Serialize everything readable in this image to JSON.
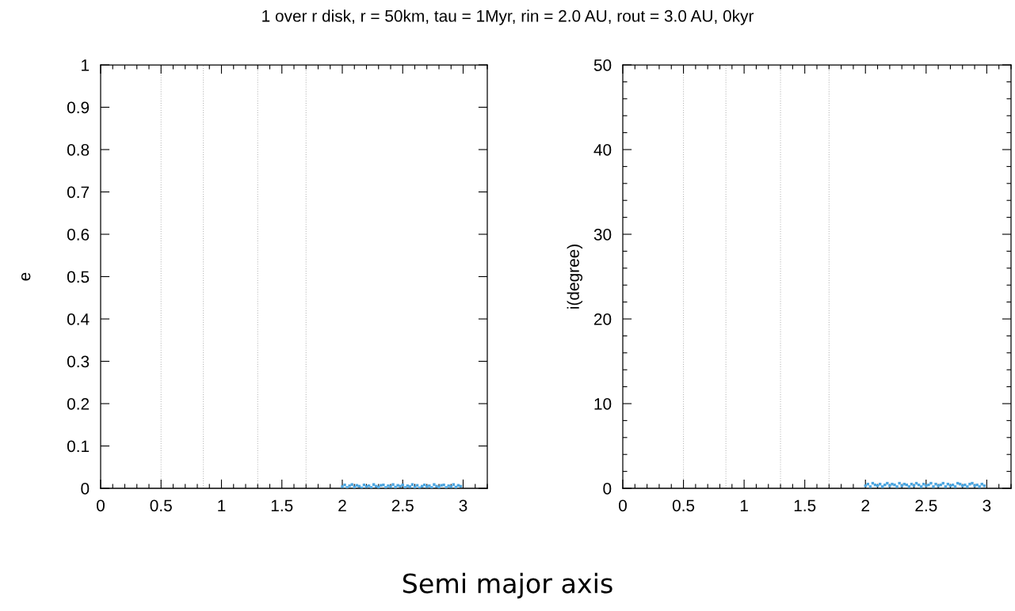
{
  "chart_data": [
    {
      "type": "scatter",
      "title": "1 over r disk, r = 50km, tau = 1Myr, rin = 2.0 AU, rout = 3.0 AU, 0kyr",
      "xlabel": "Semi major axis",
      "ylabel": "e",
      "xlim": [
        0,
        3.2
      ],
      "xticks": [
        0,
        0.5,
        1,
        1.5,
        2,
        2.5,
        3
      ],
      "ylim": [
        0,
        1
      ],
      "yticks": [
        0,
        0.1,
        0.2,
        0.3,
        0.4,
        0.5,
        0.6,
        0.7,
        0.8,
        0.9,
        1
      ],
      "grid": false,
      "marker": "square",
      "ref_lines": [
        {
          "axis": "x",
          "value": 0.5,
          "color": "#bbbbbb",
          "line_style": "dotted"
        },
        {
          "axis": "x",
          "value": 0.85,
          "color": "#bbbbbb",
          "line_style": "dotted"
        },
        {
          "axis": "x",
          "value": 1.3,
          "color": "#bbbbbb",
          "line_style": "dotted"
        },
        {
          "axis": "x",
          "value": 1.7,
          "color": "#bbbbbb",
          "line_style": "dotted"
        }
      ],
      "series": [
        {
          "color": "#4da6e0",
          "x": [
            2.0,
            2.02,
            2.04,
            2.06,
            2.08,
            2.1,
            2.12,
            2.14,
            2.16,
            2.18,
            2.2,
            2.22,
            2.24,
            2.26,
            2.28,
            2.3,
            2.32,
            2.34,
            2.36,
            2.38,
            2.4,
            2.42,
            2.44,
            2.46,
            2.48,
            2.5,
            2.52,
            2.54,
            2.56,
            2.58,
            2.6,
            2.62,
            2.64,
            2.66,
            2.68,
            2.7,
            2.72,
            2.74,
            2.76,
            2.78,
            2.8,
            2.82,
            2.84,
            2.86,
            2.88,
            2.9,
            2.92,
            2.94,
            2.96,
            2.98
          ],
          "values": [
            0.004,
            0.008,
            0.002,
            0.006,
            0.009,
            0.003,
            0.007,
            0.005,
            0.001,
            0.008,
            0.004,
            0.006,
            0.002,
            0.009,
            0.005,
            0.003,
            0.007,
            0.008,
            0.002,
            0.006,
            0.004,
            0.009,
            0.003,
            0.007,
            0.005,
            0.008,
            0.002,
            0.006,
            0.004,
            0.009,
            0.003,
            0.007,
            0.001,
            0.005,
            0.008,
            0.004,
            0.006,
            0.002,
            0.009,
            0.005,
            0.003,
            0.007,
            0.008,
            0.002,
            0.006,
            0.004,
            0.009,
            0.003,
            0.007,
            0.005
          ]
        }
      ]
    },
    {
      "type": "scatter",
      "ylabel": "i(degree)",
      "xlim": [
        0,
        3.2
      ],
      "xticks": [
        0,
        0.5,
        1,
        1.5,
        2,
        2.5,
        3
      ],
      "ylim": [
        0,
        50
      ],
      "yticks": [
        0,
        10,
        20,
        30,
        40,
        50
      ],
      "grid": false,
      "marker": "square",
      "ref_lines": [
        {
          "axis": "x",
          "value": 0.5,
          "color": "#bbbbbb",
          "line_style": "dotted"
        },
        {
          "axis": "x",
          "value": 0.85,
          "color": "#bbbbbb",
          "line_style": "dotted"
        },
        {
          "axis": "x",
          "value": 1.3,
          "color": "#bbbbbb",
          "line_style": "dotted"
        },
        {
          "axis": "x",
          "value": 1.7,
          "color": "#bbbbbb",
          "line_style": "dotted"
        }
      ],
      "series": [
        {
          "color": "#4da6e0",
          "x": [
            2.0,
            2.02,
            2.04,
            2.06,
            2.08,
            2.1,
            2.12,
            2.14,
            2.16,
            2.18,
            2.2,
            2.22,
            2.24,
            2.26,
            2.28,
            2.3,
            2.32,
            2.34,
            2.36,
            2.38,
            2.4,
            2.42,
            2.44,
            2.46,
            2.48,
            2.5,
            2.52,
            2.54,
            2.56,
            2.58,
            2.6,
            2.62,
            2.64,
            2.66,
            2.68,
            2.7,
            2.72,
            2.74,
            2.76,
            2.78,
            2.8,
            2.82,
            2.84,
            2.86,
            2.88,
            2.9,
            2.92,
            2.94,
            2.96,
            2.98
          ],
          "values": [
            0.3,
            0.5,
            0.2,
            0.6,
            0.4,
            0.3,
            0.5,
            0.2,
            0.4,
            0.6,
            0.3,
            0.5,
            0.4,
            0.2,
            0.6,
            0.3,
            0.5,
            0.4,
            0.2,
            0.5,
            0.3,
            0.6,
            0.4,
            0.2,
            0.5,
            0.3,
            0.4,
            0.6,
            0.2,
            0.5,
            0.3,
            0.4,
            0.6,
            0.2,
            0.5,
            0.3,
            0.4,
            0.2,
            0.6,
            0.5,
            0.3,
            0.4,
            0.2,
            0.5,
            0.6,
            0.3,
            0.4,
            0.2,
            0.5,
            0.3
          ]
        }
      ]
    }
  ]
}
